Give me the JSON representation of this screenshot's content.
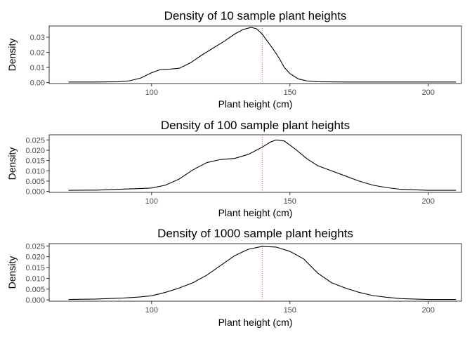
{
  "chart_data": [
    {
      "type": "line",
      "title": "Density of 10 sample plant heights",
      "xlabel": "Plant height (cm)",
      "ylabel": "Density",
      "xlim": [
        63,
        212
      ],
      "ylim": [
        -0.0006,
        0.0374
      ],
      "x_ticks": [
        100,
        150,
        200
      ],
      "y_ticks": [
        0.0,
        0.01,
        0.02,
        0.03
      ],
      "y_tick_labels": [
        "0.00",
        "0.01",
        "0.02",
        "0.03"
      ],
      "reference_line_x": 140,
      "reference_line_color": "#e4573d",
      "grid": false,
      "series": [
        {
          "x": [
            70,
            80,
            88,
            92,
            96,
            100,
            103,
            106,
            110,
            114,
            118,
            122,
            126,
            130,
            133,
            136,
            138,
            140,
            142,
            144,
            146,
            148,
            150,
            153,
            156,
            160,
            170,
            180,
            190,
            200,
            210
          ],
          "y": [
            0.0004,
            0.0004,
            0.0006,
            0.0012,
            0.003,
            0.0065,
            0.0085,
            0.0088,
            0.0095,
            0.013,
            0.018,
            0.0225,
            0.027,
            0.032,
            0.035,
            0.0365,
            0.0355,
            0.032,
            0.027,
            0.022,
            0.0165,
            0.01,
            0.006,
            0.0025,
            0.0012,
            0.0006,
            0.0004,
            0.0004,
            0.0004,
            0.0004,
            0.0004
          ]
        }
      ]
    },
    {
      "type": "line",
      "title": "Density of 100 sample plant heights",
      "xlabel": "Plant height (cm)",
      "ylabel": "Density",
      "xlim": [
        63,
        212
      ],
      "ylim": [
        -0.0005,
        0.0275
      ],
      "x_ticks": [
        100,
        150,
        200
      ],
      "y_ticks": [
        0.0,
        0.005,
        0.01,
        0.015,
        0.02,
        0.025
      ],
      "y_tick_labels": [
        "0.000",
        "0.005",
        "0.010",
        "0.015",
        "0.020",
        "0.025"
      ],
      "reference_line_x": 140,
      "reference_line_color": "#e4573d",
      "grid": false,
      "series": [
        {
          "x": [
            70,
            80,
            90,
            95,
            100,
            105,
            110,
            115,
            120,
            125,
            130,
            135,
            140,
            143,
            145,
            148,
            152,
            156,
            160,
            165,
            170,
            175,
            180,
            185,
            190,
            200,
            210
          ],
          "y": [
            0.0005,
            0.0006,
            0.0011,
            0.0013,
            0.0016,
            0.003,
            0.006,
            0.0105,
            0.014,
            0.0155,
            0.016,
            0.018,
            0.0215,
            0.024,
            0.025,
            0.0245,
            0.0205,
            0.016,
            0.0125,
            0.01,
            0.0075,
            0.005,
            0.003,
            0.0018,
            0.001,
            0.0005,
            0.0005
          ]
        }
      ]
    },
    {
      "type": "line",
      "title": "Density of 1000 sample plant heights",
      "xlabel": "Plant height (cm)",
      "ylabel": "Density",
      "xlim": [
        63,
        212
      ],
      "ylim": [
        -0.0006,
        0.0261
      ],
      "x_ticks": [
        100,
        150,
        200
      ],
      "y_ticks": [
        0.0,
        0.005,
        0.01,
        0.015,
        0.02,
        0.025
      ],
      "y_tick_labels": [
        "0.000",
        "0.005",
        "0.010",
        "0.015",
        "0.020",
        "0.025"
      ],
      "reference_line_x": 140,
      "reference_line_color": "#e4573d",
      "grid": false,
      "series": [
        {
          "x": [
            70,
            80,
            90,
            95,
            100,
            105,
            110,
            115,
            120,
            125,
            130,
            135,
            140,
            145,
            150,
            155,
            160,
            165,
            170,
            175,
            180,
            185,
            190,
            200,
            210
          ],
          "y": [
            0.0002,
            0.0004,
            0.0009,
            0.0013,
            0.0019,
            0.0035,
            0.0055,
            0.008,
            0.0115,
            0.016,
            0.0205,
            0.0235,
            0.0248,
            0.0245,
            0.0225,
            0.019,
            0.0125,
            0.008,
            0.0055,
            0.0035,
            0.002,
            0.0012,
            0.0006,
            0.0002,
            0.0002
          ]
        }
      ]
    }
  ]
}
